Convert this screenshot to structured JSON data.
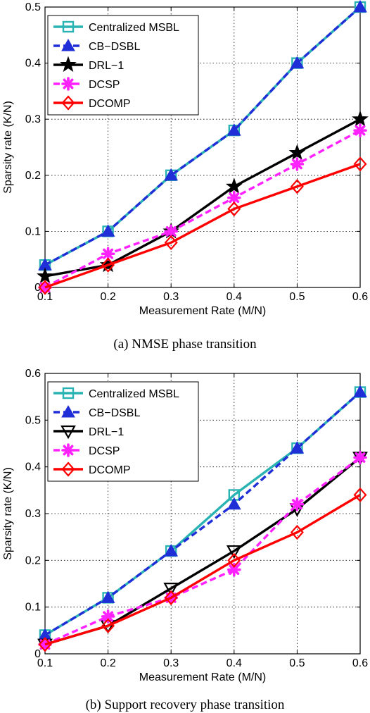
{
  "chart_data": [
    {
      "type": "line",
      "caption": "(a) NMSE phase transition",
      "xlabel": "Measurement Rate (M/N)",
      "ylabel": "Sparsity rate (K/N)",
      "x": [
        0.1,
        0.2,
        0.3,
        0.4,
        0.5,
        0.6
      ],
      "xlim": [
        0.1,
        0.6
      ],
      "ylim": [
        0,
        0.5
      ],
      "xticks": [
        "0.1",
        "0.2",
        "0.3",
        "0.4",
        "0.5",
        "0.6"
      ],
      "yticks": [
        0,
        0.1,
        0.2,
        0.3,
        0.4,
        0.5
      ],
      "ytick_labels": [
        "0",
        "0.1",
        "0.2",
        "0.3",
        "0.4",
        "0.5"
      ],
      "grid": true,
      "legend_position": "top-left",
      "series": [
        {
          "name": "Centralized MSBL",
          "color": "#2ab3b3",
          "marker": "square",
          "dash": "solid",
          "values": [
            0.04,
            0.1,
            0.2,
            0.28,
            0.4,
            0.5
          ]
        },
        {
          "name": "CB−DSBL",
          "color": "#1f2ed6",
          "marker": "triangle-up",
          "dash": "dashed",
          "values": [
            0.04,
            0.1,
            0.2,
            0.28,
            0.4,
            0.5
          ]
        },
        {
          "name": "DRL−1",
          "color": "#000000",
          "marker": "star",
          "dash": "solid",
          "values": [
            0.02,
            0.04,
            0.1,
            0.18,
            0.24,
            0.3
          ]
        },
        {
          "name": "DCSP",
          "color": "#ff22ff",
          "marker": "asterisk",
          "dash": "dashed",
          "values": [
            0.0,
            0.06,
            0.1,
            0.16,
            0.22,
            0.28
          ]
        },
        {
          "name": "DCOMP",
          "color": "#ff0000",
          "marker": "diamond",
          "dash": "solid",
          "values": [
            0.0,
            0.04,
            0.08,
            0.14,
            0.18,
            0.22
          ]
        }
      ]
    },
    {
      "type": "line",
      "caption": "(b) Support recovery phase transition",
      "xlabel": "Measurement Rate (M/N)",
      "ylabel": "Sparsity rate (K/N)",
      "x": [
        0.1,
        0.2,
        0.3,
        0.4,
        0.5,
        0.6
      ],
      "xlim": [
        0.1,
        0.6
      ],
      "ylim": [
        0,
        0.6
      ],
      "xticks": [
        "0.1",
        "0.2",
        "0.3",
        "0.4",
        "0.5",
        "0.6"
      ],
      "yticks": [
        0,
        0.1,
        0.2,
        0.3,
        0.4,
        0.5,
        0.6
      ],
      "ytick_labels": [
        "0",
        "0.1",
        "0.2",
        "0.3",
        "0.4",
        "0.5",
        "0.6"
      ],
      "grid": true,
      "legend_position": "top-left",
      "series": [
        {
          "name": "Centralized MSBL",
          "color": "#2ab3b3",
          "marker": "square",
          "dash": "solid",
          "values": [
            0.04,
            0.12,
            0.22,
            0.34,
            0.44,
            0.56
          ]
        },
        {
          "name": "CB−DSBL",
          "color": "#1f2ed6",
          "marker": "triangle-up",
          "dash": "dashed",
          "values": [
            0.04,
            0.12,
            0.22,
            0.32,
            0.44,
            0.56
          ]
        },
        {
          "name": "DRL−1",
          "color": "#000000",
          "marker": "triangle-down",
          "dash": "solid",
          "values": [
            0.02,
            0.06,
            0.14,
            0.22,
            0.31,
            0.42
          ]
        },
        {
          "name": "DCSP",
          "color": "#ff22ff",
          "marker": "asterisk",
          "dash": "dashed",
          "values": [
            0.02,
            0.08,
            0.12,
            0.18,
            0.32,
            0.42
          ]
        },
        {
          "name": "DCOMP",
          "color": "#ff0000",
          "marker": "diamond",
          "dash": "solid",
          "values": [
            0.02,
            0.06,
            0.12,
            0.2,
            0.26,
            0.34
          ]
        }
      ]
    }
  ]
}
